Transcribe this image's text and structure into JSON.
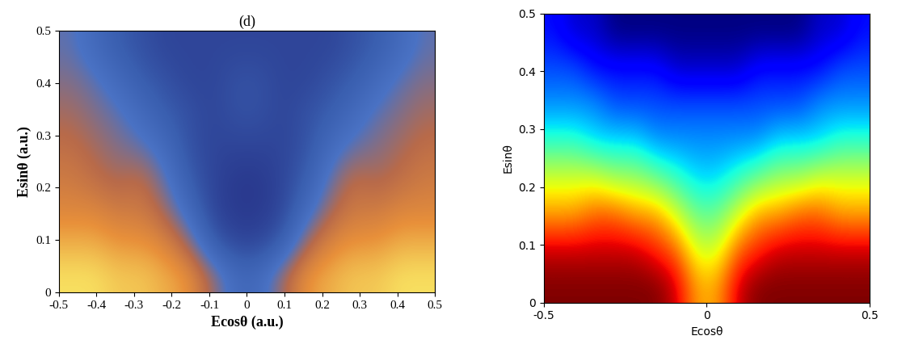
{
  "chart_data": [
    {
      "type": "heatmap",
      "title": "(d)",
      "x_label": "Ecosθ (a.u.)",
      "y_label": "Esinθ (a.u.)",
      "xlim": [
        -0.5,
        0.5
      ],
      "ylim": [
        0,
        0.5
      ],
      "xticks": [
        -0.5,
        -0.4,
        -0.3,
        -0.2,
        -0.1,
        0,
        0.1,
        0.2,
        0.3,
        0.4,
        0.5
      ],
      "yticks": [
        0,
        0.1,
        0.2,
        0.3,
        0.4,
        0.5
      ],
      "cells": [
        [
          0.95,
          0.95,
          0.9,
          0.9,
          0.85,
          0.8,
          0.6,
          0.4,
          0.4,
          0.6,
          0.8,
          0.85,
          0.9,
          0.9,
          0.95,
          0.95
        ],
        [
          0.85,
          0.85,
          0.8,
          0.8,
          0.75,
          0.6,
          0.3,
          0.2,
          0.2,
          0.3,
          0.6,
          0.75,
          0.8,
          0.8,
          0.85,
          0.85
        ],
        [
          0.75,
          0.75,
          0.7,
          0.7,
          0.6,
          0.4,
          0.2,
          0.15,
          0.15,
          0.2,
          0.4,
          0.6,
          0.7,
          0.7,
          0.75,
          0.75
        ],
        [
          0.7,
          0.65,
          0.6,
          0.65,
          0.5,
          0.3,
          0.2,
          0.15,
          0.15,
          0.2,
          0.3,
          0.5,
          0.65,
          0.6,
          0.65,
          0.7
        ],
        [
          0.65,
          0.6,
          0.55,
          0.5,
          0.4,
          0.25,
          0.2,
          0.2,
          0.2,
          0.2,
          0.25,
          0.4,
          0.5,
          0.55,
          0.6,
          0.65
        ],
        [
          0.6,
          0.55,
          0.5,
          0.4,
          0.3,
          0.25,
          0.2,
          0.25,
          0.25,
          0.2,
          0.25,
          0.3,
          0.4,
          0.5,
          0.55,
          0.6
        ],
        [
          0.55,
          0.5,
          0.4,
          0.3,
          0.25,
          0.2,
          0.2,
          0.25,
          0.25,
          0.2,
          0.2,
          0.25,
          0.3,
          0.4,
          0.5,
          0.55
        ],
        [
          0.5,
          0.4,
          0.3,
          0.25,
          0.2,
          0.2,
          0.2,
          0.2,
          0.2,
          0.2,
          0.2,
          0.2,
          0.25,
          0.3,
          0.4,
          0.5
        ]
      ]
    },
    {
      "type": "heatmap",
      "x_label": "Ecosθ",
      "y_label": "Esinθ",
      "xlim": [
        -0.5,
        0.5
      ],
      "ylim": [
        0,
        0.5
      ],
      "xticks": [
        -0.5,
        0,
        0.5
      ],
      "yticks": [
        0,
        0.1,
        0.2,
        0.3,
        0.4,
        0.5
      ],
      "cells": [
        [
          0.9,
          0.9,
          0.9,
          0.9,
          0.9,
          0.9,
          0.85,
          0.7,
          0.7,
          0.85,
          0.9,
          0.9,
          0.9,
          0.9,
          0.9,
          0.9
        ],
        [
          0.85,
          0.85,
          0.85,
          0.85,
          0.85,
          0.8,
          0.75,
          0.6,
          0.6,
          0.75,
          0.8,
          0.85,
          0.85,
          0.85,
          0.85,
          0.85
        ],
        [
          0.7,
          0.7,
          0.75,
          0.75,
          0.7,
          0.7,
          0.6,
          0.5,
          0.5,
          0.6,
          0.7,
          0.7,
          0.75,
          0.75,
          0.7,
          0.7
        ],
        [
          0.6,
          0.6,
          0.6,
          0.55,
          0.55,
          0.5,
          0.45,
          0.4,
          0.4,
          0.45,
          0.5,
          0.55,
          0.55,
          0.6,
          0.6,
          0.6
        ],
        [
          0.45,
          0.45,
          0.4,
          0.4,
          0.4,
          0.35,
          0.35,
          0.35,
          0.35,
          0.35,
          0.35,
          0.4,
          0.4,
          0.4,
          0.45,
          0.45
        ],
        [
          0.35,
          0.35,
          0.35,
          0.3,
          0.3,
          0.3,
          0.3,
          0.3,
          0.3,
          0.3,
          0.3,
          0.3,
          0.3,
          0.35,
          0.35,
          0.35
        ],
        [
          0.3,
          0.3,
          0.25,
          0.25,
          0.25,
          0.25,
          0.2,
          0.2,
          0.2,
          0.2,
          0.25,
          0.25,
          0.25,
          0.25,
          0.3,
          0.3
        ],
        [
          0.25,
          0.2,
          0.2,
          0.15,
          0.15,
          0.15,
          0.15,
          0.15,
          0.15,
          0.15,
          0.15,
          0.15,
          0.15,
          0.2,
          0.2,
          0.25
        ]
      ]
    }
  ]
}
